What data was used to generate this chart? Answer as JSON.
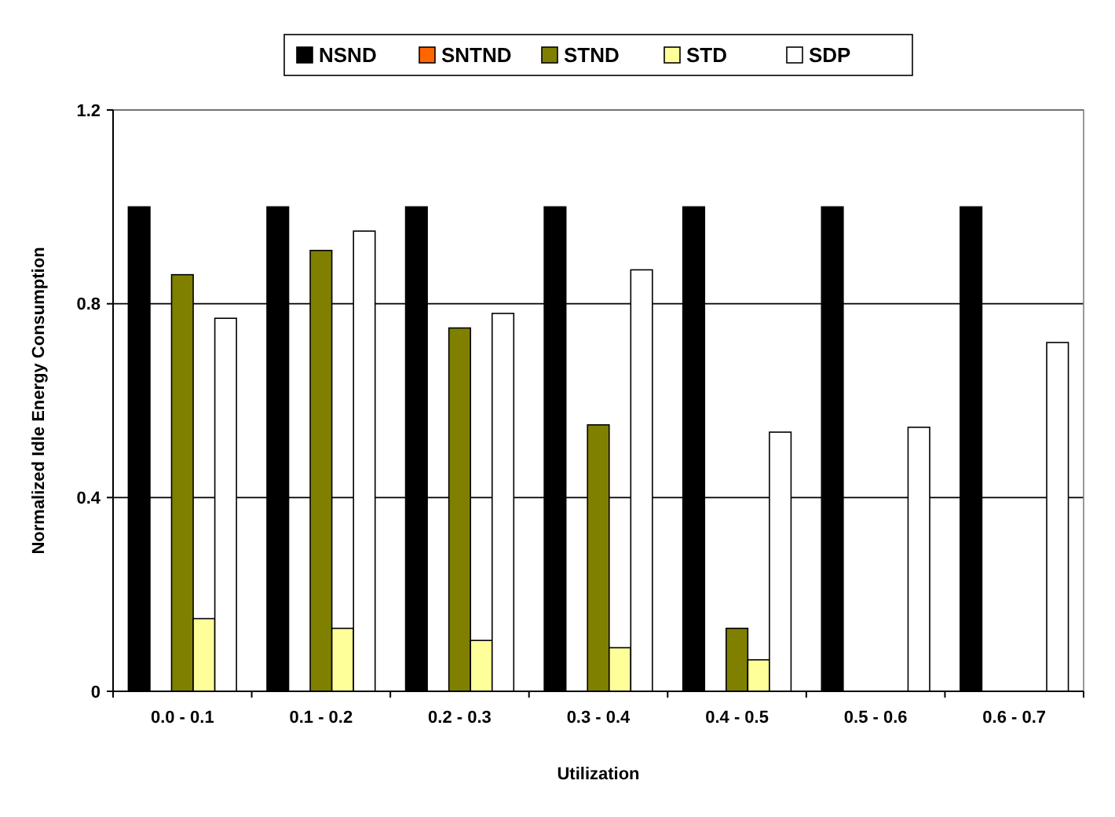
{
  "chart_data": {
    "type": "bar",
    "xlabel": "Utilization",
    "ylabel": "Normalized Idle Energy Consumption",
    "categories": [
      "0.0 - 0.1",
      "0.1 - 0.2",
      "0.2 - 0.3",
      "0.3 - 0.4",
      "0.4 - 0.5",
      "0.5 - 0.6",
      "0.6 - 0.7"
    ],
    "series": [
      {
        "name": "NSND",
        "color": "#000000",
        "values": [
          1,
          1,
          1,
          1,
          1,
          1,
          1
        ]
      },
      {
        "name": "SNTND",
        "color": "#ff6600",
        "values": [
          0,
          0,
          0,
          0,
          0,
          0,
          0
        ]
      },
      {
        "name": "STND",
        "color": "#808000",
        "values": [
          0.86,
          0.91,
          0.75,
          0.55,
          0.13,
          null,
          null
        ]
      },
      {
        "name": "STD",
        "color": "#ffff99",
        "values": [
          0.15,
          0.13,
          0.105,
          0.09,
          0.065,
          null,
          null
        ]
      },
      {
        "name": "SDP",
        "color": "#ffffff",
        "values": [
          0.77,
          0.95,
          0.78,
          0.87,
          0.535,
          0.545,
          0.72
        ]
      }
    ],
    "ylim": [
      0,
      1.2
    ],
    "yticks": [
      0,
      0.4,
      0.8,
      1.2
    ],
    "grid": "y",
    "legend": "top"
  }
}
